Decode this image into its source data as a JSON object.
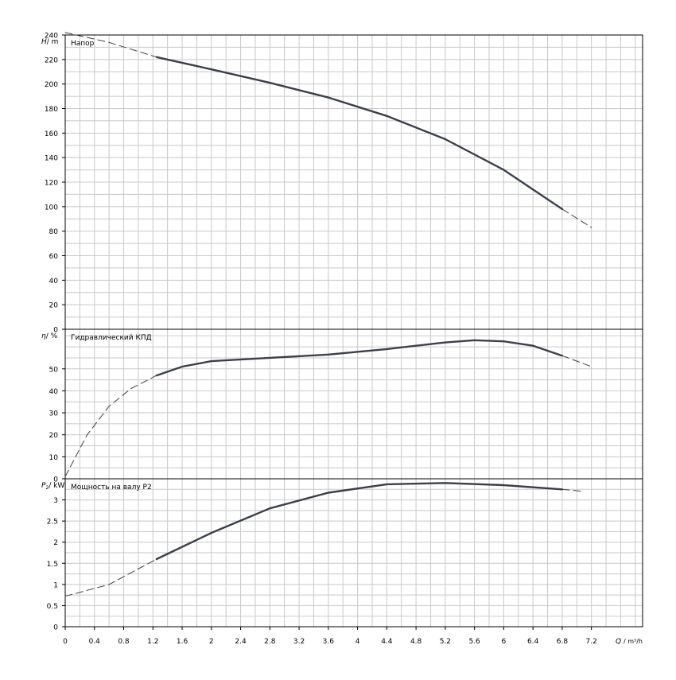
{
  "chart_data": [
    {
      "type": "line",
      "panel": "head",
      "title": "Напор",
      "ylabel_sym": "H",
      "ylabel_unit": "/ m",
      "ylim": [
        0,
        240
      ],
      "yticks": [
        0,
        20,
        40,
        60,
        80,
        100,
        120,
        140,
        160,
        180,
        200,
        220,
        240
      ],
      "ytick_labels": [
        "0",
        "20",
        "40",
        "60",
        "80",
        "100",
        "120",
        "140",
        "160",
        "180",
        "200",
        "220",
        "240"
      ],
      "series": [
        {
          "values": [
            {
              "x": 0,
              "y": 242,
              "style": "dashed"
            },
            {
              "x": 0.6,
              "y": 234,
              "style": "dashed"
            },
            {
              "x": 1.25,
              "y": 222,
              "style": "dashed"
            },
            {
              "x": 1.25,
              "y": 222,
              "style": "solid"
            },
            {
              "x": 2,
              "y": 212,
              "style": "solid"
            },
            {
              "x": 2.8,
              "y": 201,
              "style": "solid"
            },
            {
              "x": 3.6,
              "y": 189,
              "style": "solid"
            },
            {
              "x": 4.4,
              "y": 174,
              "style": "solid"
            },
            {
              "x": 5.2,
              "y": 155,
              "style": "solid"
            },
            {
              "x": 6.0,
              "y": 130,
              "style": "solid"
            },
            {
              "x": 6.8,
              "y": 98,
              "style": "solid"
            },
            {
              "x": 6.8,
              "y": 98,
              "style": "dashed"
            },
            {
              "x": 7.2,
              "y": 83,
              "style": "dashed"
            }
          ]
        }
      ]
    },
    {
      "type": "line",
      "panel": "efficiency",
      "title": "Гидравлический КПД",
      "ylabel_sym": "η",
      "ylabel_unit": "/ %",
      "ylim": [
        0,
        68
      ],
      "yticks": [
        0,
        10,
        20,
        30,
        40,
        50
      ],
      "ytick_labels": [
        "0",
        "10",
        "20",
        "30",
        "40",
        "50"
      ],
      "series": [
        {
          "values": [
            {
              "x": 0,
              "y": 1,
              "style": "dashed"
            },
            {
              "x": 0.3,
              "y": 20,
              "style": "dashed"
            },
            {
              "x": 0.6,
              "y": 33,
              "style": "dashed"
            },
            {
              "x": 0.9,
              "y": 41,
              "style": "dashed"
            },
            {
              "x": 1.25,
              "y": 47,
              "style": "dashed"
            },
            {
              "x": 1.25,
              "y": 47,
              "style": "solid"
            },
            {
              "x": 1.6,
              "y": 51,
              "style": "solid"
            },
            {
              "x": 2.0,
              "y": 53.5,
              "style": "solid"
            },
            {
              "x": 2.8,
              "y": 55,
              "style": "solid"
            },
            {
              "x": 3.6,
              "y": 56.5,
              "style": "solid"
            },
            {
              "x": 4.4,
              "y": 59,
              "style": "solid"
            },
            {
              "x": 5.2,
              "y": 62,
              "style": "solid"
            },
            {
              "x": 5.6,
              "y": 63,
              "style": "solid"
            },
            {
              "x": 6.0,
              "y": 62.5,
              "style": "solid"
            },
            {
              "x": 6.4,
              "y": 60.5,
              "style": "solid"
            },
            {
              "x": 6.8,
              "y": 56,
              "style": "solid"
            },
            {
              "x": 6.8,
              "y": 56,
              "style": "dashed"
            },
            {
              "x": 7.2,
              "y": 51,
              "style": "dashed"
            }
          ]
        }
      ]
    },
    {
      "type": "line",
      "panel": "power",
      "title": "Мощность на валу P2",
      "ylabel_sym": "P",
      "ylabel_sub": "2",
      "ylabel_unit": "/ kW",
      "ylim": [
        0,
        3.5
      ],
      "yticks": [
        0,
        0.5,
        1,
        1.5,
        2,
        2.5,
        3
      ],
      "ytick_labels": [
        "0",
        "0.5",
        "1",
        "1.5",
        "2",
        "2.5",
        "3"
      ],
      "series": [
        {
          "values": [
            {
              "x": 0,
              "y": 0.72,
              "style": "dashed"
            },
            {
              "x": 0.6,
              "y": 1.0,
              "style": "dashed"
            },
            {
              "x": 1.25,
              "y": 1.6,
              "style": "dashed"
            },
            {
              "x": 1.25,
              "y": 1.6,
              "style": "solid"
            },
            {
              "x": 2.0,
              "y": 2.22,
              "style": "solid"
            },
            {
              "x": 2.8,
              "y": 2.8,
              "style": "solid"
            },
            {
              "x": 3.6,
              "y": 3.17,
              "style": "solid"
            },
            {
              "x": 4.4,
              "y": 3.37,
              "style": "solid"
            },
            {
              "x": 5.2,
              "y": 3.4,
              "style": "solid"
            },
            {
              "x": 6.0,
              "y": 3.35,
              "style": "solid"
            },
            {
              "x": 6.8,
              "y": 3.25,
              "style": "solid"
            },
            {
              "x": 6.8,
              "y": 3.25,
              "style": "dashed"
            },
            {
              "x": 7.1,
              "y": 3.2,
              "style": "dashed"
            }
          ]
        }
      ]
    }
  ],
  "x_axis": {
    "label_sym": "Q",
    "label_unit": "/ m³/h",
    "xlim": [
      0,
      7.9
    ],
    "ticks": [
      0,
      0.4,
      0.8,
      1.2,
      1.6,
      2,
      2.4,
      2.8,
      3.2,
      3.6,
      4,
      4.4,
      4.8,
      5.2,
      5.6,
      6,
      6.4,
      6.8,
      7.2
    ],
    "tick_labels": [
      "0",
      "0.4",
      "0.8",
      "1.2",
      "1.6",
      "2",
      "2.4",
      "2.8",
      "3.2",
      "3.6",
      "4",
      "4.4",
      "4.8",
      "5.2",
      "5.6",
      "6",
      "6.4",
      "6.8",
      "7.2"
    ],
    "minor_step": 0.2
  },
  "colors": {
    "curve": "#3a3f4a",
    "grid": "#c8c8c8",
    "frame": "#000000"
  }
}
